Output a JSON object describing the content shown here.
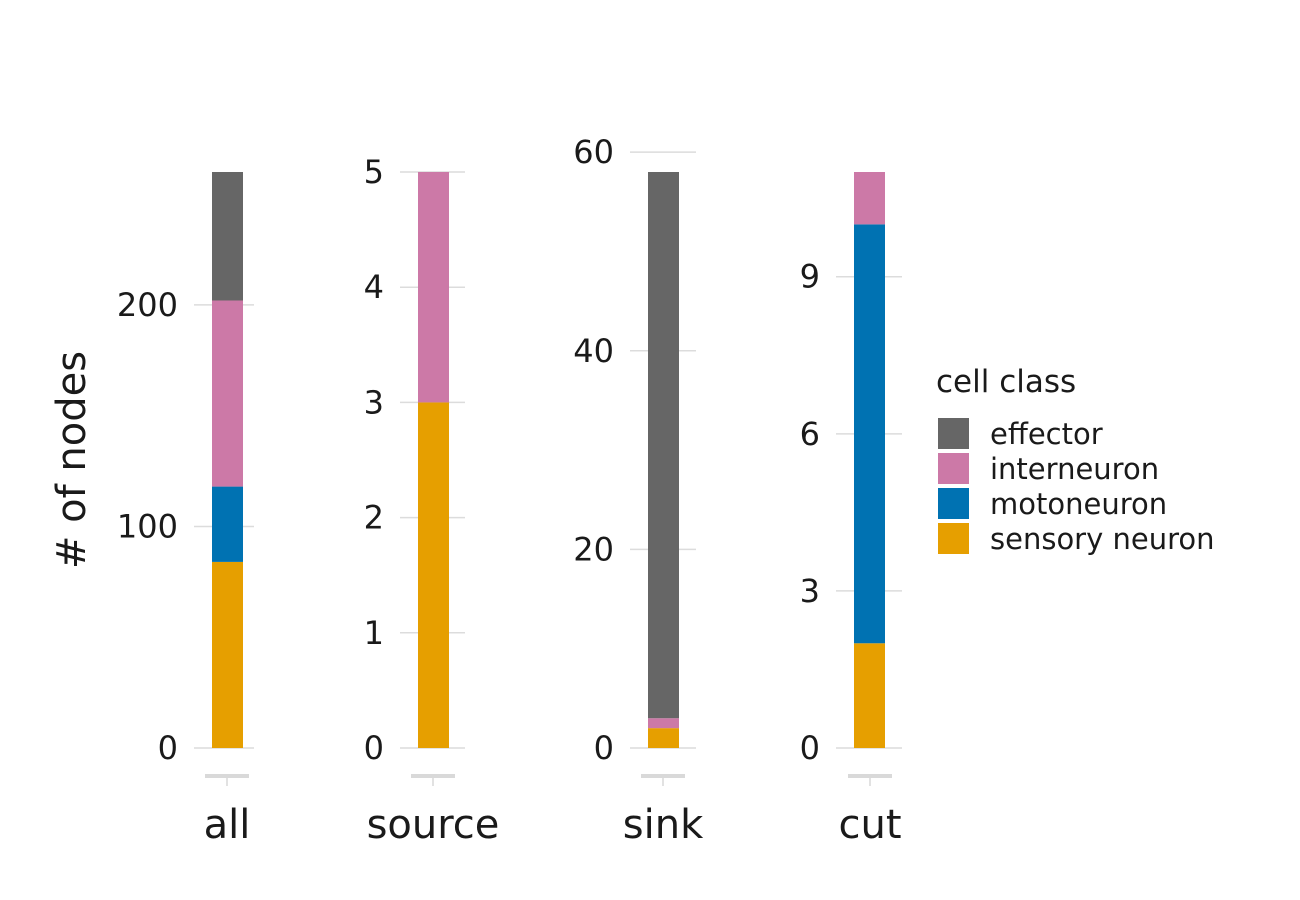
{
  "chart_data": {
    "type": "bar",
    "stacked": true,
    "ylabel": "# of nodes",
    "legend": {
      "title": "cell class",
      "entries": [
        {
          "name": "effector",
          "color": "#666666"
        },
        {
          "name": "interneuron",
          "color": "#CC79A7"
        },
        {
          "name": "motoneuron",
          "color": "#0072B2"
        },
        {
          "name": "sensory neuron",
          "color": "#E69F00"
        }
      ]
    },
    "panels": [
      {
        "category": "all",
        "ylim": [
          0,
          260
        ],
        "yticks": [
          0,
          100,
          200
        ],
        "series": [
          {
            "name": "sensory neuron",
            "value": 84
          },
          {
            "name": "motoneuron",
            "value": 34
          },
          {
            "name": "interneuron",
            "value": 84
          },
          {
            "name": "effector",
            "value": 58
          }
        ]
      },
      {
        "category": "source",
        "ylim": [
          0,
          5
        ],
        "yticks": [
          0,
          1,
          2,
          3,
          4,
          5
        ],
        "series": [
          {
            "name": "sensory neuron",
            "value": 3
          },
          {
            "name": "interneuron",
            "value": 2
          }
        ]
      },
      {
        "category": "sink",
        "ylim": [
          0,
          60
        ],
        "yticks": [
          0,
          20,
          40,
          60
        ],
        "series": [
          {
            "name": "sensory neuron",
            "value": 2
          },
          {
            "name": "interneuron",
            "value": 1
          },
          {
            "name": "effector",
            "value": 55
          }
        ]
      },
      {
        "category": "cut",
        "ylim": [
          0,
          11
        ],
        "yticks": [
          0,
          3,
          6,
          9
        ],
        "series": [
          {
            "name": "sensory neuron",
            "value": 2
          },
          {
            "name": "motoneuron",
            "value": 8
          },
          {
            "name": "interneuron",
            "value": 1
          }
        ]
      }
    ]
  }
}
